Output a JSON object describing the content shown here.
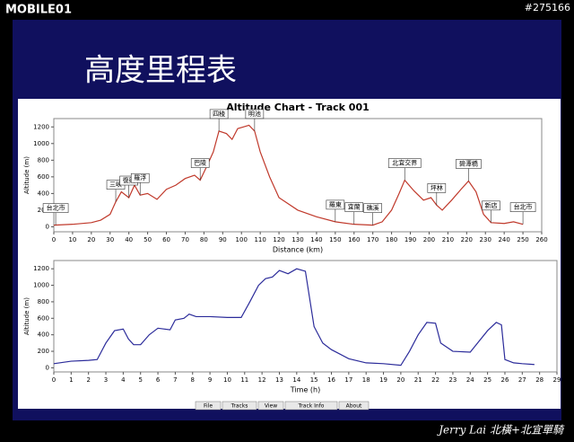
{
  "header": {
    "logo": "MOBILE01",
    "post_id": "#275166",
    "slide_title": "高度里程表"
  },
  "chart_data": [
    {
      "type": "line",
      "title": "Altitude Chart - Track 001",
      "x_label": "Distance (km)",
      "y_label": "Altitude (m)",
      "xlim": [
        0,
        260
      ],
      "xticks": [
        0,
        10,
        20,
        30,
        40,
        50,
        60,
        70,
        80,
        90,
        100,
        110,
        120,
        130,
        140,
        150,
        160,
        170,
        180,
        190,
        200,
        210,
        220,
        230,
        240,
        250,
        260
      ],
      "ylim": [
        -60,
        1300
      ],
      "yticks": [
        0,
        200,
        400,
        600,
        800,
        1000,
        1200
      ],
      "series": [
        {
          "color": "#c0392b",
          "x": [
            0,
            10,
            20,
            25,
            30,
            33,
            36,
            40,
            43,
            46,
            50,
            55,
            60,
            65,
            70,
            75,
            78,
            82,
            85,
            88,
            92,
            95,
            98,
            101,
            104,
            107,
            110,
            115,
            120,
            130,
            140,
            150,
            160,
            170,
            175,
            180,
            184,
            187,
            192,
            197,
            201,
            204,
            207,
            212,
            217,
            221,
            225,
            229,
            233,
            240,
            245,
            250
          ],
          "values": [
            20,
            30,
            50,
            80,
            150,
            300,
            420,
            350,
            500,
            380,
            400,
            330,
            450,
            500,
            580,
            620,
            560,
            750,
            900,
            1150,
            1120,
            1050,
            1180,
            1200,
            1220,
            1150,
            900,
            600,
            350,
            200,
            120,
            60,
            30,
            20,
            60,
            200,
            400,
            560,
            430,
            320,
            350,
            260,
            200,
            320,
            450,
            550,
            420,
            150,
            50,
            40,
            60,
            30
          ]
        }
      ],
      "annotations": [
        {
          "text": "台北市",
          "x": 1,
          "y": 20
        },
        {
          "text": "三峽",
          "x": 33,
          "y": 300
        },
        {
          "text": "復興",
          "x": 40,
          "y": 350
        },
        {
          "text": "羅浮",
          "x": 46,
          "y": 380
        },
        {
          "text": "巴陵",
          "x": 78,
          "y": 560
        },
        {
          "text": "四稜",
          "x": 88,
          "y": 1150
        },
        {
          "text": "明池",
          "x": 107,
          "y": 1150
        },
        {
          "text": "羅東",
          "x": 150,
          "y": 60
        },
        {
          "text": "宜蘭",
          "x": 160,
          "y": 30
        },
        {
          "text": "礁溪",
          "x": 170,
          "y": 20
        },
        {
          "text": "北宜交界",
          "x": 187,
          "y": 560
        },
        {
          "text": "坪林",
          "x": 204,
          "y": 260
        },
        {
          "text": "碧潭橋",
          "x": 221,
          "y": 550
        },
        {
          "text": "新店",
          "x": 233,
          "y": 50
        },
        {
          "text": "台北市",
          "x": 250,
          "y": 30
        }
      ]
    },
    {
      "type": "line",
      "x_label": "Time (h)",
      "y_label": "Altitude (m)",
      "xlim": [
        0,
        29
      ],
      "xticks": [
        0,
        1,
        2,
        3,
        4,
        5,
        6,
        7,
        8,
        9,
        10,
        11,
        12,
        13,
        14,
        15,
        16,
        17,
        18,
        19,
        20,
        21,
        22,
        23,
        24,
        25,
        26,
        27,
        28,
        29
      ],
      "ylim": [
        -50,
        1300
      ],
      "yticks": [
        0,
        200,
        400,
        600,
        800,
        1000,
        1200
      ],
      "series": [
        {
          "color": "#2b2b9a",
          "x": [
            0,
            1,
            2,
            2.5,
            3,
            3.5,
            4,
            4.3,
            4.6,
            5,
            5.5,
            6,
            6.7,
            7,
            7.5,
            7.8,
            8.2,
            9,
            10,
            10.8,
            11.3,
            11.8,
            12.2,
            12.6,
            13,
            13.5,
            14,
            14.5,
            15,
            15.5,
            16,
            17,
            18,
            19,
            20,
            20.5,
            21,
            21.5,
            22,
            22.3,
            23,
            24,
            25,
            25.5,
            25.8,
            26,
            26.5,
            27,
            27.7
          ],
          "values": [
            50,
            80,
            90,
            100,
            300,
            450,
            470,
            350,
            280,
            280,
            400,
            480,
            460,
            580,
            600,
            650,
            620,
            620,
            610,
            610,
            800,
            1000,
            1080,
            1100,
            1180,
            1140,
            1200,
            1170,
            500,
            300,
            220,
            110,
            60,
            50,
            30,
            200,
            400,
            550,
            540,
            300,
            200,
            190,
            450,
            550,
            520,
            100,
            60,
            50,
            40
          ]
        }
      ]
    }
  ],
  "tabs": [
    "File",
    "Tracks",
    "View",
    "Track Info",
    "About"
  ],
  "footer": "Jerry Lai 北橫+北宜單騎"
}
